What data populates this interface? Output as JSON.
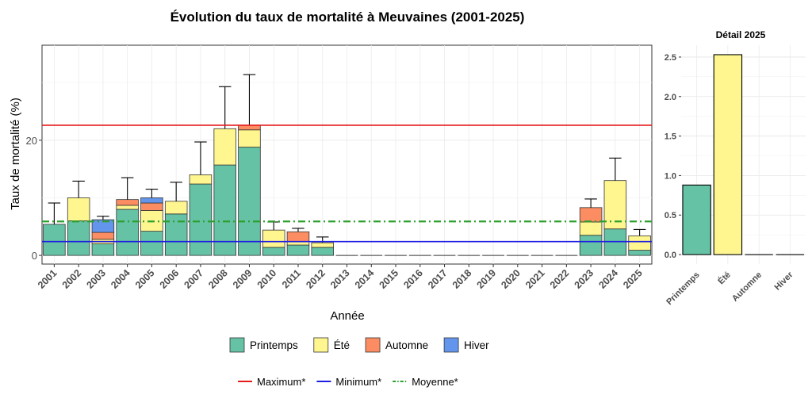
{
  "chart_data": [
    {
      "type": "bar",
      "stacked": true,
      "title": "Évolution du taux de mortalité à Meuvaines (2001-2025)",
      "xlabel": "Année",
      "ylabel": "Taux de mortalité (%)",
      "ylim": [
        -1.5,
        36.5
      ],
      "yticks": [
        0,
        20
      ],
      "grid": true,
      "categories": [
        "2001",
        "2002",
        "2003",
        "2004",
        "2005",
        "2006",
        "2007",
        "2008",
        "2009",
        "2010",
        "2011",
        "2012",
        "2013",
        "2014",
        "2015",
        "2016",
        "2017",
        "2018",
        "2019",
        "2020",
        "2021",
        "2022",
        "2023",
        "2024",
        "2025"
      ],
      "series": [
        {
          "name": "Printemps",
          "color": "#66C2A5",
          "values": [
            5.4,
            6.0,
            2.0,
            8.0,
            4.2,
            7.2,
            12.4,
            15.7,
            18.8,
            1.4,
            1.8,
            1.4,
            0,
            0,
            0,
            0,
            0,
            0,
            0,
            0,
            0,
            0,
            3.5,
            4.6,
            0.9
          ]
        },
        {
          "name": "Été",
          "color": "#FFF68F",
          "values": [
            0,
            4.0,
            0.8,
            0.7,
            3.6,
            2.2,
            1.6,
            6.3,
            3.0,
            3.0,
            0.6,
            0.8,
            0,
            0,
            0,
            0,
            0,
            0,
            0,
            0,
            0,
            0,
            2.3,
            8.4,
            2.5
          ]
        },
        {
          "name": "Automne",
          "color": "#FC8D62",
          "values": [
            0,
            0,
            1.2,
            1.0,
            1.3,
            0,
            0,
            0,
            0.8,
            0,
            1.7,
            0,
            0,
            0,
            0,
            0,
            0,
            0,
            0,
            0,
            0,
            0,
            2.5,
            0,
            0
          ]
        },
        {
          "name": "Hiver",
          "color": "#6495ED",
          "values": [
            0,
            0,
            2.2,
            0,
            0.9,
            0,
            0,
            0,
            0,
            0,
            0,
            0,
            0,
            0,
            0,
            0,
            0,
            0,
            0,
            0,
            0,
            0,
            0,
            0,
            0
          ]
        }
      ],
      "error_upper": [
        9.1,
        12.9,
        6.8,
        13.5,
        11.5,
        12.7,
        19.7,
        29.3,
        31.4,
        5.8,
        4.7,
        3.2,
        0,
        0,
        0,
        0,
        0,
        0,
        0,
        0,
        0,
        0,
        9.8,
        16.9,
        4.5
      ],
      "hlines": [
        {
          "name": "Maximum*",
          "value": 22.6,
          "color": "#E41A1C",
          "style": "solid"
        },
        {
          "name": "Minimum*",
          "value": 2.4,
          "color": "#1F1FE0",
          "style": "solid"
        },
        {
          "name": "Moyenne*",
          "value": 5.9,
          "color": "#2CA02C",
          "style": "dashdot"
        }
      ],
      "legend_fill_position": "bottom",
      "legend_lines_position": "bottom"
    },
    {
      "type": "bar",
      "title": "Détail 2025",
      "categories": [
        "Printemps",
        "Été",
        "Automne",
        "Hiver"
      ],
      "values": [
        0.88,
        2.53,
        0.0,
        0.0
      ],
      "colors": [
        "#66C2A5",
        "#FFF68F",
        "#FC8D62",
        "#6495ED"
      ],
      "ylim": [
        -0.12,
        2.65
      ],
      "yticks": [
        0.0,
        0.5,
        1.0,
        1.5,
        2.0,
        2.5
      ],
      "ytick_labels": [
        "0.0",
        "0.5",
        "1.0",
        "1.5",
        "2.0",
        "2.5"
      ],
      "grid": true
    }
  ]
}
